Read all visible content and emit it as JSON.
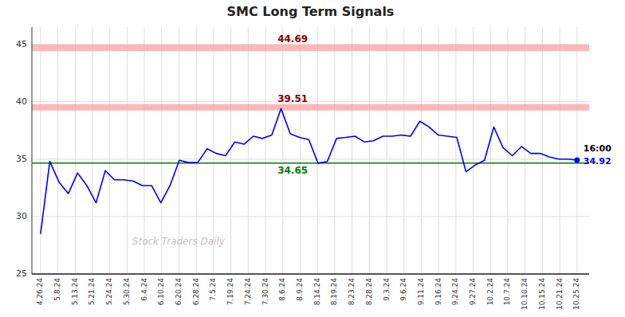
{
  "chart_data": {
    "type": "line",
    "title": "SMC Long Term Signals",
    "watermark": "Stock Traders Daily",
    "color": "blue",
    "grid": true,
    "x": [
      0,
      0.5345,
      1.069,
      1.6034,
      2.1379,
      2.6724,
      3.2069,
      3.7414,
      4.2759,
      4.8103,
      5.3448,
      5.8793,
      6.4138,
      6.9483,
      7.4828,
      8.0172,
      8.5517,
      9.0862,
      9.6207,
      10.1552,
      10.6897,
      11.2241,
      11.7586,
      12.2931,
      12.8276,
      13.3621,
      13.8966,
      14.431,
      14.9655,
      15.5,
      16.0345,
      16.569,
      17.1034,
      17.6379,
      18.1724,
      18.7069,
      19.2414,
      19.7759,
      20.3103,
      20.8448,
      21.3793,
      21.9138,
      22.4483,
      22.9828,
      23.5172,
      24.0517,
      24.5862,
      25.1207,
      25.6552,
      26.1897,
      26.7241,
      27.2586,
      27.7931,
      28.3276,
      28.8621,
      29.3966,
      29.931,
      30.4655,
      31
    ],
    "values": [
      28.5,
      34.8,
      33.0,
      32.0,
      33.8,
      32.7,
      31.2,
      34.0,
      33.2,
      33.2,
      33.1,
      32.7,
      32.7,
      31.2,
      32.7,
      34.9,
      34.7,
      34.7,
      35.9,
      35.5,
      35.3,
      36.5,
      36.3,
      37.0,
      36.8,
      37.1,
      39.4,
      37.2,
      36.9,
      36.7,
      34.65,
      34.8,
      36.8,
      36.9,
      37.0,
      36.5,
      36.6,
      37.0,
      37.0,
      37.1,
      37.0,
      38.3,
      37.8,
      37.1,
      37.0,
      36.9,
      33.9,
      34.5,
      34.9,
      37.8,
      36.0,
      35.3,
      36.1,
      35.5,
      35.5,
      35.2,
      35.0,
      35.0,
      34.92
    ],
    "xlim": [
      -0.5,
      31.7
    ],
    "xticks": [
      {
        "value": 0,
        "label": "4.26.24"
      },
      {
        "value": 1,
        "label": "5.8.24"
      },
      {
        "value": 2,
        "label": "5.13.24"
      },
      {
        "value": 3,
        "label": "5.21.24"
      },
      {
        "value": 4,
        "label": "5.24.24"
      },
      {
        "value": 5,
        "label": "5.30.24"
      },
      {
        "value": 6,
        "label": "6.4.24"
      },
      {
        "value": 7,
        "label": "6.10.24"
      },
      {
        "value": 8,
        "label": "6.20.24"
      },
      {
        "value": 9,
        "label": "6.28.24"
      },
      {
        "value": 10,
        "label": "7.5.24"
      },
      {
        "value": 11,
        "label": "7.19.24"
      },
      {
        "value": 12,
        "label": "7.24.24"
      },
      {
        "value": 13,
        "label": "7.30.24"
      },
      {
        "value": 14,
        "label": "8.6.24"
      },
      {
        "value": 15,
        "label": "8.9.24"
      },
      {
        "value": 16,
        "label": "8.14.24"
      },
      {
        "value": 17,
        "label": "8.19.24"
      },
      {
        "value": 18,
        "label": "8.23.24"
      },
      {
        "value": 19,
        "label": "8.28.24"
      },
      {
        "value": 20,
        "label": "9.3.24"
      },
      {
        "value": 21,
        "label": "9.6.24"
      },
      {
        "value": 22,
        "label": "9.11.24"
      },
      {
        "value": 23,
        "label": "9.16.24"
      },
      {
        "value": 24,
        "label": "9.24.24"
      },
      {
        "value": 25,
        "label": "9.27.24"
      },
      {
        "value": 26,
        "label": "10.2.24"
      },
      {
        "value": 27,
        "label": "10.7.24"
      },
      {
        "value": 28,
        "label": "10.10.24"
      },
      {
        "value": 29,
        "label": "10.15.24"
      },
      {
        "value": 30,
        "label": "10.21.24"
      },
      {
        "value": 31,
        "label": "10.25.24"
      }
    ],
    "ylim": [
      25,
      46.5
    ],
    "yticks": [
      25,
      30,
      35,
      40,
      45
    ],
    "reference_lines": [
      {
        "value": 34.65,
        "color": "green",
        "label_color": "green"
      },
      {
        "value": 39.51,
        "color": "#ff9999",
        "label_color": "darkred"
      },
      {
        "value": 44.69,
        "color": "#ff9999",
        "label_color": "darkred"
      }
    ],
    "last_point": {
      "label": "16:00",
      "label_color": "black",
      "value": 34.92,
      "value_color": "blue"
    }
  }
}
